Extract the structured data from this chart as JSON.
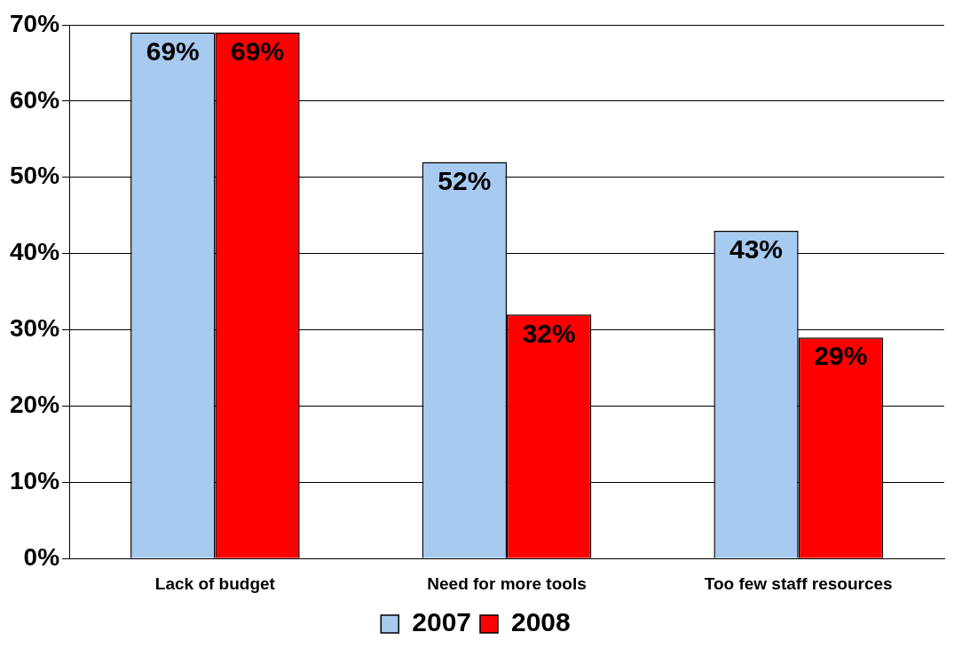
{
  "chart_data": {
    "type": "bar",
    "categories": [
      "Lack of budget",
      "Need for more tools",
      "Too few staff resources"
    ],
    "series": [
      {
        "name": "2007",
        "color": "#a6caf0",
        "values": [
          69,
          52,
          43
        ],
        "value_labels": [
          "69%",
          "52%",
          "43%"
        ]
      },
      {
        "name": "2008",
        "color": "#ff0000",
        "values": [
          69,
          32,
          29
        ],
        "value_labels": [
          "69%",
          "32%",
          "29%"
        ]
      }
    ],
    "ylim": [
      0,
      70
    ],
    "yticks": [
      {
        "value": 0,
        "label": "0%"
      },
      {
        "value": 10,
        "label": "10%"
      },
      {
        "value": 20,
        "label": "20%"
      },
      {
        "value": 30,
        "label": "30%"
      },
      {
        "value": 40,
        "label": "40%"
      },
      {
        "value": 50,
        "label": "50%"
      },
      {
        "value": 60,
        "label": "60%"
      },
      {
        "value": 70,
        "label": "70%"
      }
    ],
    "grid": "y",
    "legend": "bottom"
  }
}
